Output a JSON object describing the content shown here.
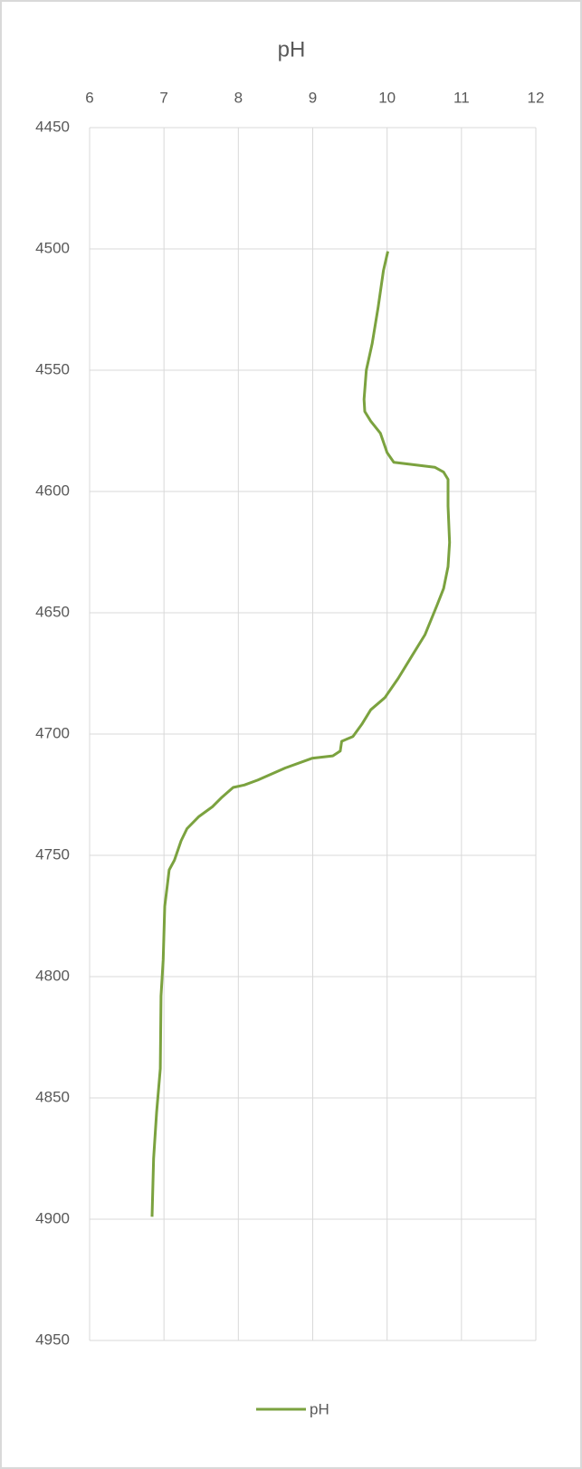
{
  "chart_data": {
    "type": "line",
    "title": "pH",
    "xlim": [
      6,
      12
    ],
    "xticks": [
      6,
      7,
      8,
      9,
      10,
      11,
      12
    ],
    "ylim": [
      4450,
      4950
    ],
    "yticks": [
      4450,
      4500,
      4550,
      4600,
      4650,
      4700,
      4750,
      4800,
      4850,
      4900,
      4950
    ],
    "y_reversed": true,
    "grid": true,
    "legend": "bottom",
    "series": [
      {
        "name": "pH",
        "color": "#7ba23f",
        "x": [
          10.01,
          9.95,
          9.88,
          9.8,
          9.72,
          9.69,
          9.7,
          9.78,
          9.91,
          10.0,
          10.09,
          10.64,
          10.76,
          10.82,
          10.82,
          10.84,
          10.82,
          10.76,
          10.67,
          10.51,
          10.33,
          10.15,
          9.97,
          9.78,
          9.66,
          9.54,
          9.39,
          9.37,
          9.27,
          8.99,
          8.63,
          8.26,
          8.08,
          7.93,
          7.78,
          7.65,
          7.47,
          7.31,
          7.23,
          7.14,
          7.07,
          7.05,
          7.01,
          6.99,
          6.96,
          6.95,
          6.9,
          6.86,
          6.84
        ],
        "y": [
          4501,
          4509,
          4524,
          4539,
          4550,
          4562,
          4567,
          4571,
          4576,
          4584,
          4588,
          4590,
          4592,
          4595,
          4606,
          4621,
          4631,
          4640,
          4647,
          4659,
          4668,
          4677,
          4685,
          4690,
          4696,
          4701,
          4703,
          4707,
          4709,
          4710,
          4714,
          4719,
          4721,
          4722,
          4726,
          4730,
          4734,
          4739,
          4744,
          4752,
          4756,
          4761,
          4771,
          4793,
          4808,
          4838,
          4856,
          4875,
          4899
        ]
      }
    ]
  }
}
